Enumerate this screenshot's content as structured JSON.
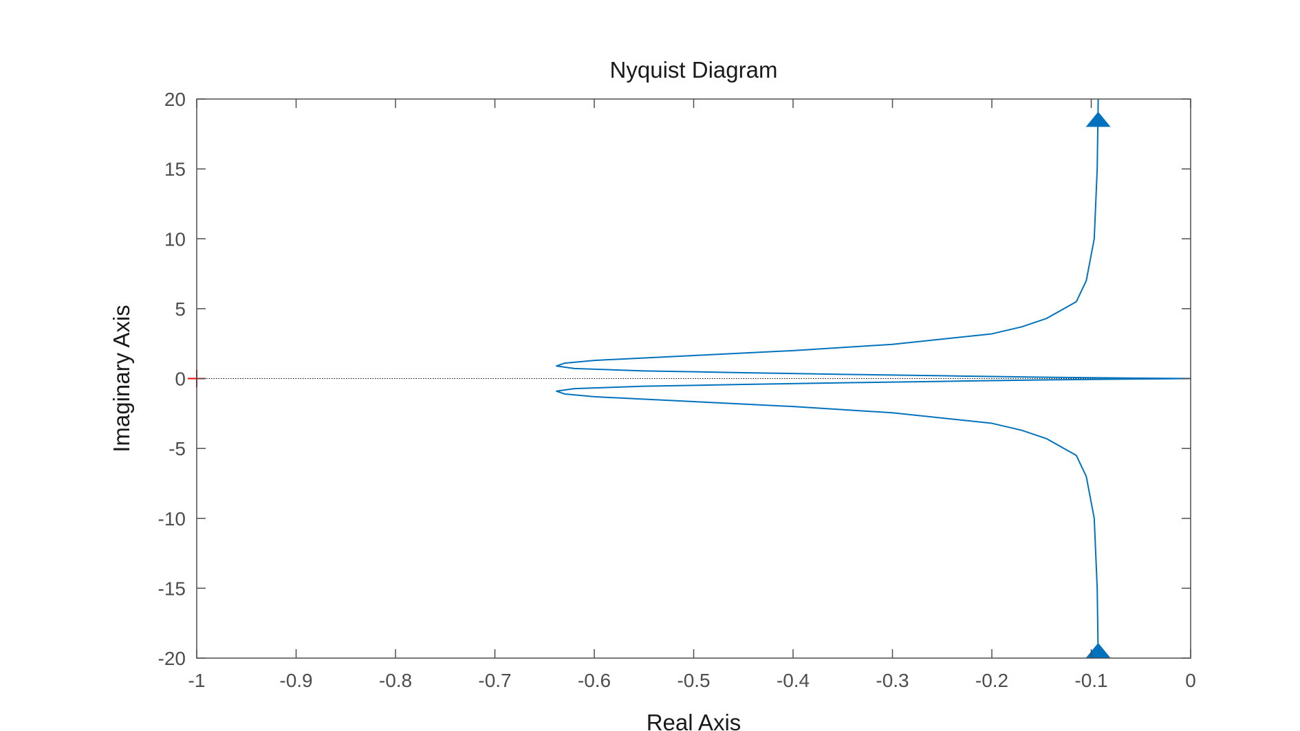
{
  "chart_data": {
    "type": "line",
    "title": "Nyquist Diagram",
    "xlabel": "Real Axis",
    "ylabel": "Imaginary Axis",
    "xlim": [
      -1,
      0
    ],
    "ylim": [
      -20,
      20
    ],
    "grid": false,
    "x_ticks": [
      -1,
      -0.9,
      -0.8,
      -0.7,
      -0.6,
      -0.5,
      -0.4,
      -0.3,
      -0.2,
      -0.1,
      0
    ],
    "x_tick_labels": [
      "-1",
      "-0.9",
      "-0.8",
      "-0.7",
      "-0.6",
      "-0.5",
      "-0.4",
      "-0.3",
      "-0.2",
      "-0.1",
      "0"
    ],
    "y_ticks": [
      -20,
      -15,
      -10,
      -5,
      0,
      5,
      10,
      15,
      20
    ],
    "y_tick_labels": [
      "-20",
      "-15",
      "-10",
      "-5",
      "0",
      "5",
      "10",
      "15",
      "20"
    ],
    "colors": {
      "curve": "#0072BD",
      "critical_point": "#ff0000",
      "axes": "#4d4d4d"
    },
    "series": [
      {
        "values": [
          {
            "x": -0.093,
            "y": 20
          },
          {
            "x": -0.094,
            "y": 15
          },
          {
            "x": -0.097,
            "y": 10
          },
          {
            "x": -0.105,
            "y": 7
          },
          {
            "x": -0.115,
            "y": 5.5
          },
          {
            "x": -0.145,
            "y": 4.3
          },
          {
            "x": -0.17,
            "y": 3.7
          },
          {
            "x": -0.2,
            "y": 3.2
          },
          {
            "x": -0.3,
            "y": 2.45
          },
          {
            "x": -0.4,
            "y": 2.0
          },
          {
            "x": -0.5,
            "y": 1.65
          },
          {
            "x": -0.6,
            "y": 1.3
          },
          {
            "x": -0.63,
            "y": 1.1
          },
          {
            "x": -0.638,
            "y": 0.9
          },
          {
            "x": -0.62,
            "y": 0.72
          },
          {
            "x": -0.55,
            "y": 0.55
          },
          {
            "x": -0.45,
            "y": 0.42
          },
          {
            "x": -0.35,
            "y": 0.3
          },
          {
            "x": -0.25,
            "y": 0.2
          },
          {
            "x": -0.15,
            "y": 0.1
          },
          {
            "x": -0.05,
            "y": 0.03
          },
          {
            "x": 0,
            "y": 0
          },
          {
            "x": -0.05,
            "y": -0.03
          },
          {
            "x": -0.15,
            "y": -0.1
          },
          {
            "x": -0.25,
            "y": -0.2
          },
          {
            "x": -0.35,
            "y": -0.3
          },
          {
            "x": -0.45,
            "y": -0.42
          },
          {
            "x": -0.55,
            "y": -0.55
          },
          {
            "x": -0.62,
            "y": -0.72
          },
          {
            "x": -0.638,
            "y": -0.9
          },
          {
            "x": -0.63,
            "y": -1.1
          },
          {
            "x": -0.6,
            "y": -1.3
          },
          {
            "x": -0.5,
            "y": -1.65
          },
          {
            "x": -0.4,
            "y": -2.0
          },
          {
            "x": -0.3,
            "y": -2.45
          },
          {
            "x": -0.2,
            "y": -3.2
          },
          {
            "x": -0.17,
            "y": -3.7
          },
          {
            "x": -0.145,
            "y": -4.3
          },
          {
            "x": -0.115,
            "y": -5.5
          },
          {
            "x": -0.105,
            "y": -7
          },
          {
            "x": -0.097,
            "y": -10
          },
          {
            "x": -0.094,
            "y": -15
          },
          {
            "x": -0.093,
            "y": -20
          }
        ]
      }
    ],
    "arrows": [
      {
        "x": -0.093,
        "y": 18.5,
        "direction": "up"
      },
      {
        "x": -0.093,
        "y": -19.5,
        "direction": "up"
      }
    ],
    "critical_point": {
      "x": -1,
      "y": 0,
      "marker": "+"
    },
    "zero_line": {
      "y": 0,
      "style": "dotted"
    }
  }
}
